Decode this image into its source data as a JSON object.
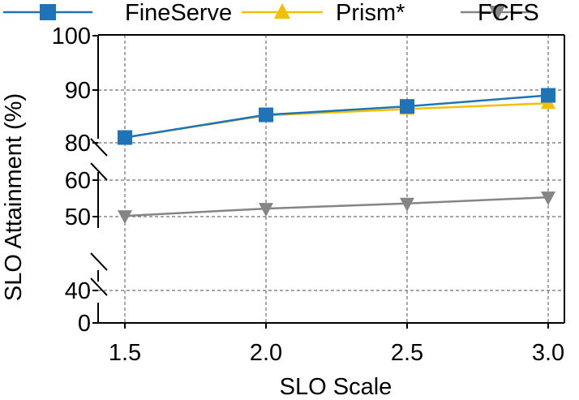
{
  "chart_data": {
    "type": "line",
    "title": "",
    "xlabel": "SLO Scale",
    "ylabel": "SLO Attainment  (%)",
    "x": [
      1.5,
      2.0,
      2.5,
      3.0
    ],
    "x_tick_labels": [
      "1.5",
      "2.0",
      "2.5",
      "3.0"
    ],
    "y_tick_values": [
      0,
      40,
      50,
      60,
      80,
      90,
      100
    ],
    "y_tick_labels": [
      "0",
      "40",
      "50",
      "60",
      "80",
      "90",
      "100"
    ],
    "y_axis_breaks": [
      [
        0,
        40
      ],
      [
        40,
        60
      ],
      [
        60,
        80
      ]
    ],
    "grid": true,
    "legend_position": "top",
    "series": [
      {
        "name": "FineServe",
        "values": [
          81.0,
          85.3,
          86.9,
          89.0
        ],
        "color": "#1f73b7",
        "marker": "square"
      },
      {
        "name": "Prism*",
        "values": [
          81.0,
          85.2,
          86.4,
          87.5
        ],
        "color": "#f2c000",
        "marker": "triangle-up"
      },
      {
        "name": "FCFS",
        "values": [
          50.2,
          52.2,
          53.6,
          55.3
        ],
        "color": "#858585",
        "marker": "triangle-down"
      }
    ]
  }
}
